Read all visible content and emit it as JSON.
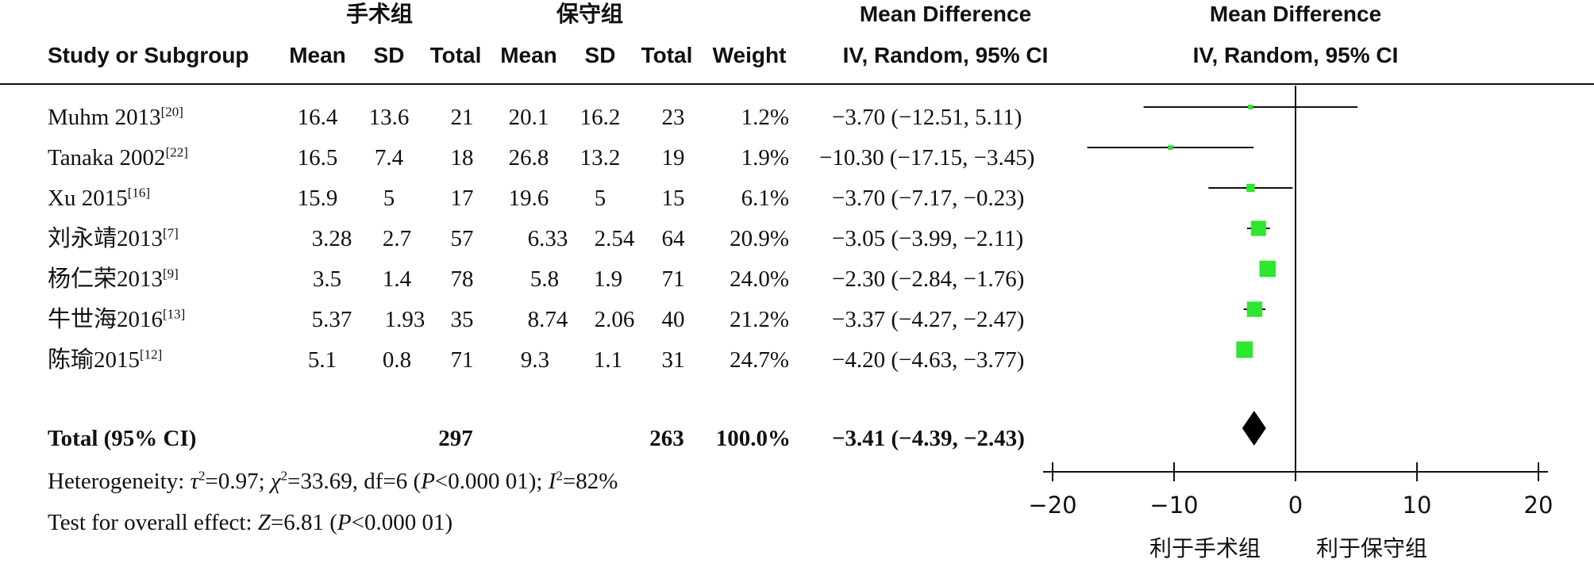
{
  "headers": {
    "group1": "手术组",
    "group2": "保守组",
    "study": "Study or Subgroup",
    "mean": "Mean",
    "sd": "SD",
    "total": "Total",
    "weight": "Weight",
    "md_title": "Mean Difference",
    "md_method": "IV, Random, 95% CI",
    "plot_title": "Mean Difference",
    "plot_method": "IV, Random, 95% CI"
  },
  "studies": [
    {
      "name": "Muhm 2013",
      "ref": "[20]",
      "m1": "16.4",
      "sd1": "13.6",
      "n1": "21",
      "m2": "20.1",
      "sd2": "16.2",
      "n2": "23",
      "weight": "1.2%",
      "ci_text": "−3.70 (−12.51, 5.11)"
    },
    {
      "name": "Tanaka 2002",
      "ref": "[22]",
      "m1": "16.5",
      "sd1": "7.4",
      "n1": "18",
      "m2": "26.8",
      "sd2": "13.2",
      "n2": "19",
      "weight": "1.9%",
      "ci_text": "−10.30 (−17.15, −3.45)"
    },
    {
      "name": "Xu 2015",
      "ref": "[16]",
      "m1": "15.9",
      "sd1": "5",
      "n1": "17",
      "m2": "19.6",
      "sd2": "5",
      "n2": "15",
      "weight": "6.1%",
      "ci_text": "−3.70 (−7.17, −0.23)"
    },
    {
      "name": "刘永靖2013",
      "ref": "[7]",
      "m1": "3.28",
      "sd1": "2.7",
      "n1": "57",
      "m2": "6.33",
      "sd2": "2.54",
      "n2": "64",
      "weight": "20.9%",
      "ci_text": "−3.05 (−3.99, −2.11)"
    },
    {
      "name": "杨仁荣2013",
      "ref": "[9]",
      "m1": "3.5",
      "sd1": "1.4",
      "n1": "78",
      "m2": "5.8",
      "sd2": "1.9",
      "n2": "71",
      "weight": "24.0%",
      "ci_text": "−2.30 (−2.84, −1.76)"
    },
    {
      "name": "牛世海2016",
      "ref": "[13]",
      "m1": "5.37",
      "sd1": "1.93",
      "n1": "35",
      "m2": "8.74",
      "sd2": "2.06",
      "n2": "40",
      "weight": "21.2%",
      "ci_text": "−3.37 (−4.27, −2.47)"
    },
    {
      "name": "陈瑜2015",
      "ref": "[12]",
      "m1": "5.1",
      "sd1": "0.8",
      "n1": "71",
      "m2": "9.3",
      "sd2": "1.1",
      "n2": "31",
      "weight": "24.7%",
      "ci_text": "−4.20 (−4.63, −3.77)"
    }
  ],
  "total": {
    "label": "Total (95% CI)",
    "n1": "297",
    "n2": "263",
    "weight": "100.0%",
    "ci_text": "−3.41 (−4.39, −2.43)"
  },
  "heterogeneity": {
    "prefix": "Heterogeneity: ",
    "tau": "τ",
    "tau_val": "=0.97; ",
    "chi": "χ",
    "chi_val": "=33.69, df=6 (",
    "p1": "P",
    "p1_val": "<0.000 01); ",
    "i": "I",
    "i_val": "=82%",
    "sup": "2"
  },
  "overall": {
    "prefix": "Test for overall effect: ",
    "z": "Z",
    "z_val": "=6.81 (",
    "p": "P",
    "p_val": "<0.000 01)"
  },
  "axis_labels": {
    "favours_left": "利于手术组",
    "favours_right": "利于保守组"
  },
  "colors": {
    "marker": "#2ee62e",
    "line": "#111111",
    "diamond": "#000000"
  },
  "chart_data": {
    "type": "scatter",
    "subtype": "forest-plot",
    "title": "Mean Difference",
    "xlabel": "IV, Random, 95% CI",
    "xlim": [
      -20,
      20
    ],
    "xticks": [
      -20,
      -10,
      0,
      10,
      20
    ],
    "xtick_labels": [
      "−20",
      "−10",
      "0",
      "10",
      "20"
    ],
    "null_line": 0,
    "series": [
      {
        "categories": [
          "Muhm 2013",
          "Tanaka 2002",
          "Xu 2015",
          "刘永靖2013",
          "杨仁荣2013",
          "牛世海2016",
          "陈瑜2015"
        ],
        "estimate": [
          -3.7,
          -10.3,
          -3.7,
          -3.05,
          -2.3,
          -3.37,
          -4.2
        ],
        "lower": [
          -12.51,
          -17.15,
          -7.17,
          -3.99,
          -2.84,
          -4.27,
          -4.63
        ],
        "upper": [
          5.11,
          -3.45,
          -0.23,
          -2.11,
          -1.76,
          -2.47,
          -3.77
        ],
        "weight": [
          1.2,
          1.9,
          6.1,
          20.9,
          24.0,
          21.2,
          24.7
        ]
      }
    ],
    "pooled": {
      "label": "Total (95% CI)",
      "estimate": -3.41,
      "lower": -4.39,
      "upper": -2.43
    }
  }
}
